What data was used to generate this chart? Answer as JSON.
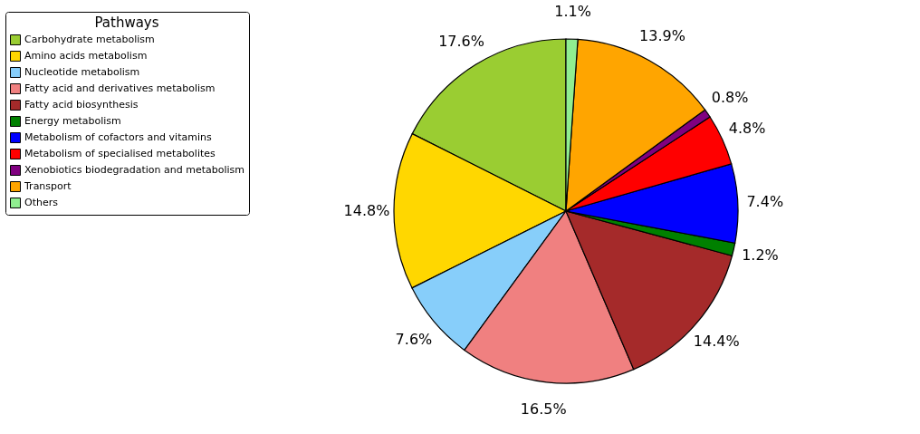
{
  "chart_data": {
    "type": "pie",
    "legend_title": "Pathways",
    "legend": "left",
    "categories": [
      "Carbohydrate metabolism",
      "Amino acids metabolism",
      "Nucleotide metabolism",
      "Fatty acid and derivatives metabolism",
      "Fatty acid biosynthesis",
      "Energy metabolism",
      "Metabolism of cofactors and vitamins",
      "Metabolism of specialised metabolites",
      "Xenobiotics biodegradation and metabolism",
      "Transport",
      "Others"
    ],
    "values": [
      17.6,
      14.8,
      7.6,
      16.5,
      14.4,
      1.2,
      7.4,
      4.8,
      0.8,
      13.9,
      1.1
    ],
    "value_labels": [
      "17.6%",
      "14.8%",
      "7.6%",
      "16.5%",
      "14.4%",
      "1.2%",
      "7.4%",
      "4.8%",
      "0.8%",
      "13.9%",
      "1.1%"
    ],
    "colors": [
      "#9acd32",
      "#ffd700",
      "#87cefa",
      "#f08080",
      "#a52a2a",
      "#008000",
      "#0000ff",
      "#ff0000",
      "#800080",
      "#ffa500",
      "#90ee90"
    ]
  }
}
